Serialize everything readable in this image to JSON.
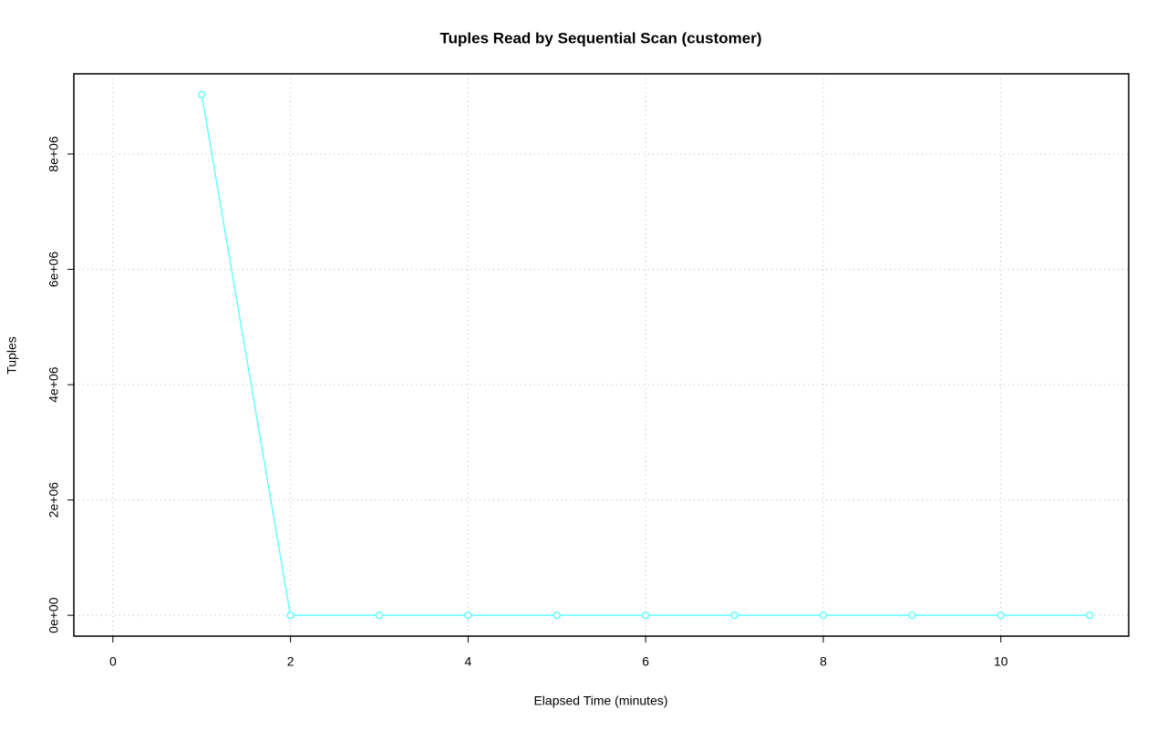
{
  "chart_data": {
    "type": "line",
    "title": "Tuples Read by Sequential Scan (customer)",
    "x_label": "Elapsed Time (minutes)",
    "y_label": "Tuples",
    "x": [
      1,
      2,
      3,
      4,
      5,
      6,
      7,
      8,
      9,
      10,
      11
    ],
    "series": [
      {
        "color": "#66ffff",
        "values": [
          9030000,
          0,
          0,
          0,
          0,
          0,
          0,
          0,
          0,
          0,
          0
        ]
      }
    ],
    "xlim": [
      -0.44,
      11.44
    ],
    "xticks": [
      0,
      2,
      4,
      6,
      8,
      10
    ],
    "ylim": [
      -361200,
      9391200
    ],
    "yticks": [
      {
        "value": 0,
        "label": "0e+00"
      },
      {
        "value": 2000000,
        "label": "2e+06"
      },
      {
        "value": 4000000,
        "label": "4e+06"
      },
      {
        "value": 6000000,
        "label": "6e+06"
      },
      {
        "value": 8000000,
        "label": "8e+06"
      }
    ],
    "grid": true
  }
}
